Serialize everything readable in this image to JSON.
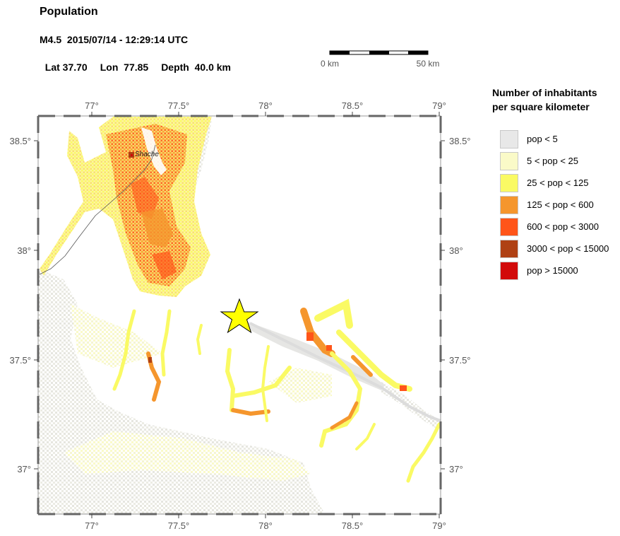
{
  "header": {
    "title": "Population",
    "event": "M4.5  2015/07/14 - 12:29:14 UTC",
    "lat": "Lat 37.70",
    "lon": "Lon  77.85",
    "depth": "Depth  40.0 km"
  },
  "scale": {
    "start_label": "0 km",
    "end_label": "50 km"
  },
  "legend": {
    "title_line1": "Number of inhabitants",
    "title_line2": "per square kilometer",
    "items": [
      {
        "label": "pop < 5",
        "color": "#e8e8e8"
      },
      {
        "label": "5 < pop < 25",
        "color": "#fafac8"
      },
      {
        "label": "25 < pop < 125",
        "color": "#fafa64"
      },
      {
        "label": "125 < pop < 600",
        "color": "#f5962d"
      },
      {
        "label": "600 < pop < 3000",
        "color": "#ff5519"
      },
      {
        "label": "3000 < pop < 15000",
        "color": "#af4114"
      },
      {
        "label": "pop > 15000",
        "color": "#d20a0a"
      }
    ]
  },
  "map": {
    "lon_range": [
      76.7,
      79.0
    ],
    "lat_range": [
      36.8,
      38.62
    ],
    "lon_ticks": [
      "77°",
      "77.5°",
      "78°",
      "78.5°",
      "79°"
    ],
    "lat_ticks": [
      "38.5°",
      "38°",
      "37.5°",
      "37°"
    ],
    "city_label": "Shache",
    "epicenter": {
      "lat": 37.7,
      "lon": 77.85,
      "symbol": "star-icon",
      "color": "#ffff00"
    }
  }
}
